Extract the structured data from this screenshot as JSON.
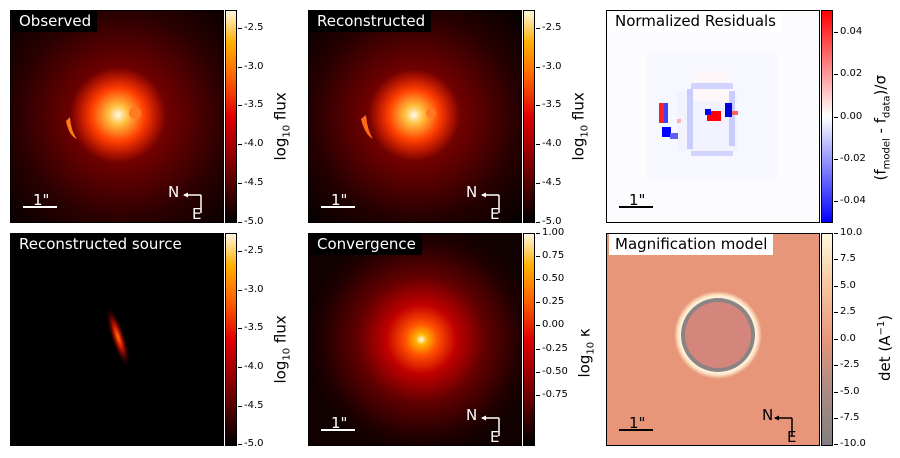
{
  "panels": {
    "observed": {
      "title": "Observed",
      "cbar_label_main": "log",
      "cbar_label_sub": "10",
      "cbar_label_tail": " flux",
      "ticks": [
        "-2.5",
        "-3.0",
        "-3.5",
        "-4.0",
        "-4.5",
        "-5.0"
      ],
      "scale_label": "1\"",
      "north": "N",
      "east": "E"
    },
    "reconstructed": {
      "title": "Reconstructed",
      "cbar_label_main": "log",
      "cbar_label_sub": "10",
      "cbar_label_tail": " flux",
      "ticks": [
        "-2.5",
        "-3.0",
        "-3.5",
        "-4.0",
        "-4.5",
        "-5.0"
      ],
      "scale_label": "1\"",
      "north": "N",
      "east": "E"
    },
    "residuals": {
      "title": "Normalized Residuals",
      "cbar_label": "(f",
      "cbar_sub1": "model",
      "cbar_mid": " - f",
      "cbar_sub2": "data",
      "cbar_tail": ")/σ",
      "ticks": [
        "0.04",
        "0.02",
        "0.00",
        "-0.02",
        "-0.04"
      ],
      "scale_label": "1\""
    },
    "source": {
      "title": "Reconstructed source",
      "cbar_label_main": "log",
      "cbar_label_sub": "10",
      "cbar_label_tail": " flux",
      "ticks": [
        "-2.5",
        "-3.0",
        "-3.5",
        "-4.0",
        "-4.5",
        "-5.0"
      ]
    },
    "convergence": {
      "title": "Convergence",
      "cbar_label_main": "log",
      "cbar_label_sub": "10",
      "cbar_label_tail": " κ",
      "ticks": [
        "1.00",
        "0.75",
        "0.50",
        "0.25",
        "0.00",
        "-0.25",
        "-0.50",
        "-0.75"
      ],
      "scale_label": "1\"",
      "north": "N",
      "east": "E"
    },
    "magnification": {
      "title": "Magnification model",
      "cbar_label_main": "det (A",
      "cbar_label_sup": "−1",
      "cbar_label_tail": ")",
      "ticks": [
        "10.0",
        "7.5",
        "5.0",
        "2.5",
        "0.0",
        "-2.5",
        "-5.0",
        "-7.5",
        "-10.0"
      ],
      "scale_label": "1\"",
      "north": "N",
      "east": "E"
    }
  },
  "colors": {
    "hot_cmap": [
      "#000000",
      "#8b0000",
      "#e00000",
      "#ff6a00",
      "#ffb000",
      "#fff7e0"
    ],
    "bwr_cmap": [
      "#0000ff",
      "#ffffff",
      "#ff0000"
    ],
    "mag_cmap": [
      "#808080",
      "#e8967a",
      "#fdfadf"
    ]
  }
}
